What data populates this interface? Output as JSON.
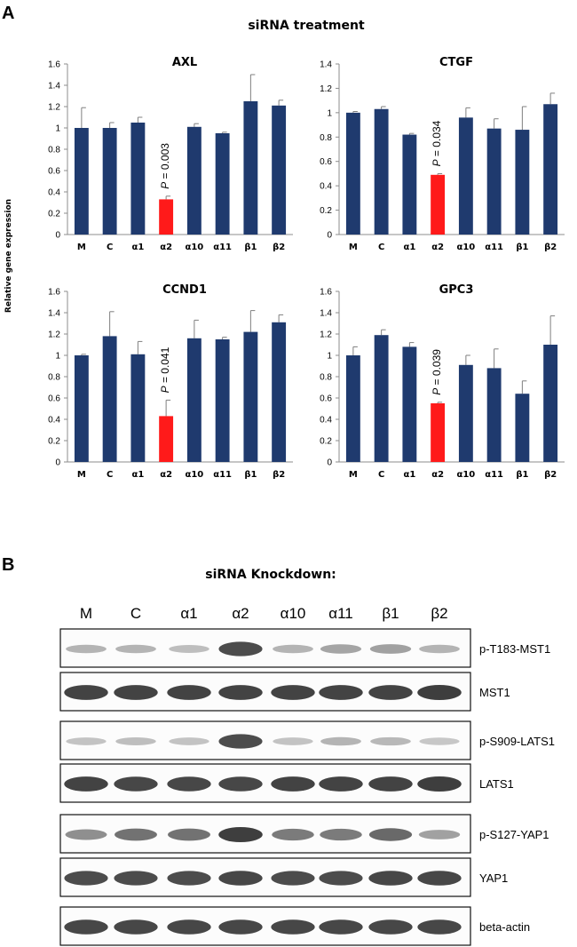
{
  "panel_a": {
    "letter": "A",
    "title": "siRNA treatment",
    "ylabel": "Relative gene expression",
    "p_prefix": "P",
    "colors": {
      "bar": "#1f3a6e",
      "highlight": "#ff1a1a",
      "error": "#7f7f7f",
      "axis": "#8c8c8c"
    }
  },
  "chart_data": [
    {
      "type": "bar",
      "title": "AXL",
      "categories": [
        "M",
        "C",
        "α1",
        "α2",
        "α10",
        "α11",
        "β1",
        "β2"
      ],
      "values": [
        1.0,
        1.0,
        1.05,
        0.33,
        1.01,
        0.95,
        1.25,
        1.21
      ],
      "errors": [
        0.19,
        0.05,
        0.05,
        0.03,
        0.03,
        0.01,
        0.25,
        0.05
      ],
      "ylim": [
        0,
        1.6
      ],
      "yticks": [
        0,
        0.2,
        0.4,
        0.6,
        0.8,
        1,
        1.2,
        1.4,
        1.6
      ],
      "highlight_index": 3,
      "annotation": "= 0.003"
    },
    {
      "type": "bar",
      "title": "CTGF",
      "categories": [
        "M",
        "C",
        "α1",
        "α2",
        "α10",
        "α11",
        "β1",
        "β2"
      ],
      "values": [
        1.0,
        1.03,
        0.82,
        0.49,
        0.96,
        0.87,
        0.86,
        1.07
      ],
      "errors": [
        0.01,
        0.02,
        0.01,
        0.01,
        0.08,
        0.08,
        0.19,
        0.09
      ],
      "ylim": [
        0,
        1.4
      ],
      "yticks": [
        0,
        0.2,
        0.4,
        0.6,
        0.8,
        1,
        1.2,
        1.4
      ],
      "highlight_index": 3,
      "annotation": "= 0.034"
    },
    {
      "type": "bar",
      "title": "CCND1",
      "categories": [
        "M",
        "C",
        "α1",
        "α2",
        "α10",
        "α11",
        "β1",
        "β2"
      ],
      "values": [
        1.0,
        1.18,
        1.01,
        0.43,
        1.16,
        1.15,
        1.22,
        1.31
      ],
      "errors": [
        0.01,
        0.23,
        0.12,
        0.15,
        0.17,
        0.02,
        0.2,
        0.07
      ],
      "ylim": [
        0,
        1.6
      ],
      "yticks": [
        0,
        0.2,
        0.4,
        0.6,
        0.8,
        1,
        1.2,
        1.4,
        1.6
      ],
      "highlight_index": 3,
      "annotation": "= 0.041"
    },
    {
      "type": "bar",
      "title": "GPC3",
      "categories": [
        "M",
        "C",
        "α1",
        "α2",
        "α10",
        "α11",
        "β1",
        "β2"
      ],
      "values": [
        1.0,
        1.19,
        1.08,
        0.55,
        0.91,
        0.88,
        0.64,
        1.1
      ],
      "errors": [
        0.08,
        0.05,
        0.04,
        0.01,
        0.09,
        0.18,
        0.12,
        0.27
      ],
      "ylim": [
        0,
        1.6
      ],
      "yticks": [
        0,
        0.2,
        0.4,
        0.6,
        0.8,
        1,
        1.2,
        1.4,
        1.6
      ],
      "highlight_index": 3,
      "annotation": "= 0.039"
    }
  ],
  "panel_b": {
    "letter": "B",
    "title": "siRNA Knockdown:",
    "lanes": [
      "M",
      "C",
      "α1",
      "α2",
      "α10",
      "α11",
      "β1",
      "β2"
    ],
    "blots": [
      {
        "label": "p-T183-MST1",
        "intensity": [
          0.3,
          0.3,
          0.25,
          0.85,
          0.3,
          0.38,
          0.4,
          0.3
        ]
      },
      {
        "label": "MST1",
        "intensity": [
          0.9,
          0.9,
          0.9,
          0.9,
          0.9,
          0.9,
          0.9,
          0.92
        ]
      },
      {
        "label": "p-S909-LATS1",
        "intensity": [
          0.22,
          0.25,
          0.22,
          0.85,
          0.22,
          0.3,
          0.28,
          0.2
        ]
      },
      {
        "label": "LATS1",
        "intensity": [
          0.9,
          0.88,
          0.88,
          0.88,
          0.9,
          0.9,
          0.9,
          0.92
        ]
      },
      {
        "label": "p-S127-YAP1",
        "intensity": [
          0.5,
          0.65,
          0.65,
          0.92,
          0.6,
          0.6,
          0.7,
          0.4
        ]
      },
      {
        "label": "YAP1",
        "intensity": [
          0.85,
          0.85,
          0.85,
          0.88,
          0.85,
          0.85,
          0.88,
          0.88
        ]
      },
      {
        "label": "beta-actin",
        "intensity": [
          0.88,
          0.88,
          0.88,
          0.88,
          0.88,
          0.88,
          0.88,
          0.88
        ]
      }
    ]
  }
}
